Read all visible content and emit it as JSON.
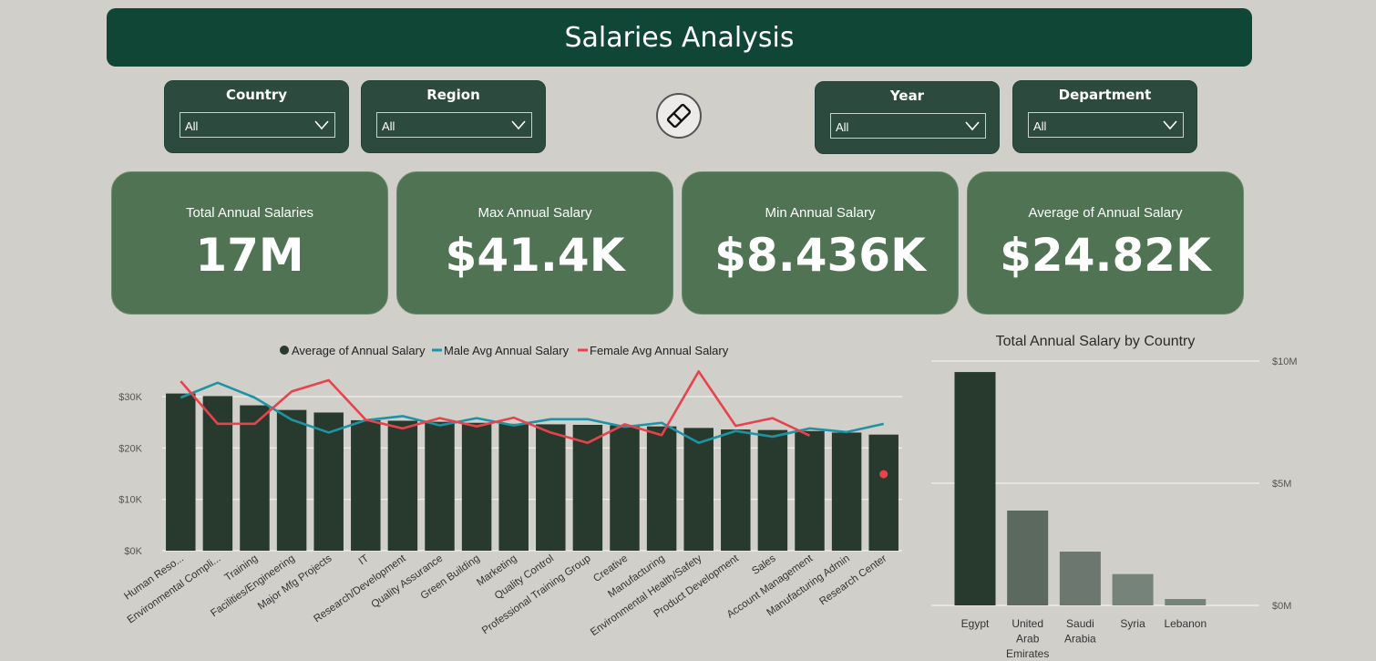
{
  "header": {
    "title": "Salaries Analysis"
  },
  "filters": [
    {
      "label": "Country",
      "value": "All"
    },
    {
      "label": "Region",
      "value": "All"
    },
    {
      "label": "Year",
      "value": "All"
    },
    {
      "label": "Department",
      "value": "All"
    }
  ],
  "clear_filters_icon": "eraser-icon",
  "kpis": [
    {
      "label": "Total Annual Salaries",
      "value": "17M"
    },
    {
      "label": "Max Annual Salary",
      "value": "$41.4K"
    },
    {
      "label": "Min Annual Salary",
      "value": "$8.436K"
    },
    {
      "label": "Average of Annual Salary",
      "value": "$24.82K"
    }
  ],
  "colors": {
    "header": "#0f4636",
    "slicer": "#2d4a3f",
    "kpi": "#507353",
    "bar": "#283a2d",
    "male": "#1d93a3",
    "female": "#e8434d",
    "background": "#d1cfca"
  },
  "chart_data": [
    {
      "type": "bar",
      "title": "",
      "xlabel": "",
      "ylabel": "",
      "legend_position": "top",
      "grid": true,
      "y_ticks": [
        "$0K",
        "$10K",
        "$20K",
        "$30K"
      ],
      "ylim": [
        0,
        35000
      ],
      "categories": [
        "Human Reso...",
        "Environmental Compli...",
        "Training",
        "Facilities/Engineering",
        "Major Mfg Projects",
        "IT",
        "Research/Development",
        "Quality Assurance",
        "Green Building",
        "Marketing",
        "Quality Control",
        "Professional Training Group",
        "Creative",
        "Manufacturing",
        "Environmental Health/Safety",
        "Product Development",
        "Sales",
        "Account Management",
        "Manufacturing Admin",
        "Research Center"
      ],
      "series": [
        {
          "name": "Average of Annual Salary",
          "type": "bar",
          "color": "#283a2d",
          "values": [
            30600,
            30100,
            28300,
            27400,
            26900,
            25400,
            25300,
            25100,
            24900,
            24700,
            24600,
            24500,
            24400,
            24200,
            23900,
            23600,
            23500,
            23300,
            23000,
            22600
          ]
        },
        {
          "name": "Male Avg Annual Salary",
          "type": "line",
          "color": "#1d93a3",
          "values": [
            29800,
            32700,
            29800,
            25500,
            23000,
            25400,
            26200,
            24400,
            25800,
            24400,
            25600,
            25600,
            24100,
            24900,
            21000,
            23300,
            22200,
            23800,
            23100,
            24700
          ]
        },
        {
          "name": "Female Avg Annual Salary",
          "type": "line",
          "color": "#e8434d",
          "values": [
            33000,
            24700,
            24700,
            31000,
            33200,
            25500,
            23800,
            25800,
            24200,
            25900,
            23000,
            21000,
            24600,
            22500,
            34900,
            24300,
            25800,
            22400,
            null,
            14900
          ]
        }
      ]
    },
    {
      "type": "bar",
      "title": "Total Annual Salary by Country",
      "xlabel": "",
      "ylabel": "",
      "grid": true,
      "y_ticks": [
        "$0M",
        "$5M",
        "$10M"
      ],
      "ylim": [
        0,
        10000000
      ],
      "categories": [
        [
          "Egypt"
        ],
        [
          "United",
          "Arab",
          "Emirates"
        ],
        [
          "Saudi",
          "Arabia"
        ],
        [
          "Syria"
        ],
        [
          "Lebanon"
        ]
      ],
      "values": [
        9550000,
        3880000,
        2200000,
        1280000,
        260000
      ],
      "bar_colors": [
        "#283a2d",
        "#5b695f",
        "#6c786f",
        "#76837a",
        "#76837a"
      ]
    }
  ]
}
